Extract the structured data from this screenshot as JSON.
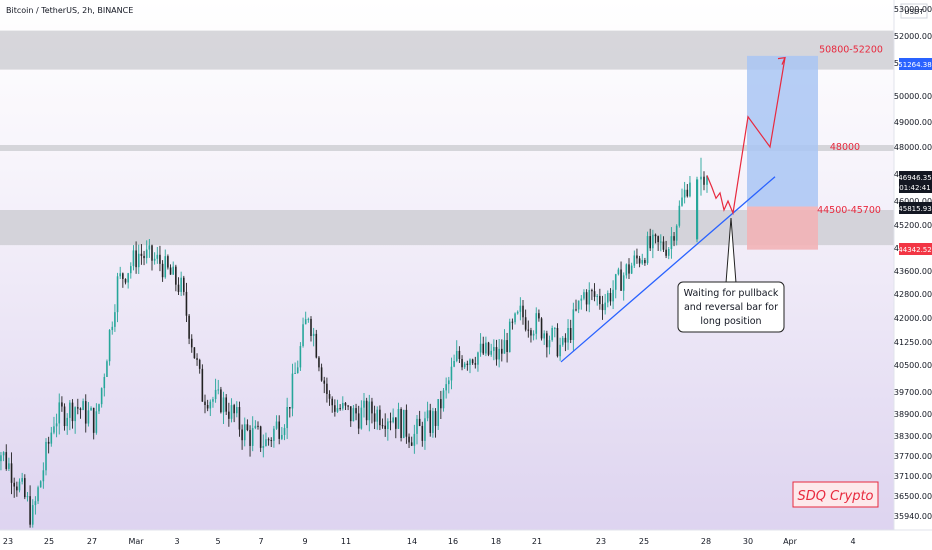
{
  "header": {
    "title": "Bitcoin / TetherUS, 2h, BINANCE"
  },
  "price_axis": {
    "currency": "USDT",
    "ticks": [
      "53000.00",
      "52000.00",
      "51000.00",
      "50000.00",
      "49000.00",
      "48000.00",
      "47000.00",
      "46000.00",
      "45200.00",
      "44400.00",
      "43600.00",
      "42800.00",
      "42000.00",
      "41250.00",
      "40500.00",
      "39700.00",
      "38900.00",
      "38300.00",
      "37700.00",
      "37100.00",
      "36500.00",
      "35940.00"
    ],
    "current_price": "46946.35",
    "countdown": "01:42:41",
    "tag_upper": "51264.38",
    "tag_mid": "45815.93",
    "tag_lower": "44342.52"
  },
  "time_axis": {
    "ticks": [
      "23",
      "25",
      "27",
      "Mar",
      "3",
      "5",
      "7",
      "9",
      "11",
      "14",
      "16",
      "18",
      "21",
      "23",
      "25",
      "28",
      "30",
      "Apr",
      "4"
    ]
  },
  "zones": [
    {
      "label": "50800-52200",
      "low": 50800,
      "high": 52200
    },
    {
      "label": "48000",
      "low": 47920,
      "high": 48080
    },
    {
      "label": "44500-45700",
      "low": 44500,
      "high": 45700
    }
  ],
  "annotation": {
    "line1": "Waiting for pullback",
    "line2": "and reversal bar for",
    "line3": "long position"
  },
  "watermark": "SDQ Crypto",
  "colors": {
    "up": "#26a69a",
    "down": "#222222",
    "zone": "#c9c9cf",
    "projection": "#e8293e",
    "trendline": "#2962ff",
    "target_box": "#a9c6f3",
    "stop_box": "#f2b3b6",
    "background_top": "#ffffff",
    "background_bottom": "#ddd3f0"
  },
  "chart_data": {
    "type": "candlestick",
    "title": "Bitcoin / TetherUS, 2h, BINANCE",
    "ylim": [
      35500,
      53300
    ],
    "y_scale": "linear",
    "x_ticks": [
      "23",
      "25",
      "27",
      "Mar",
      "3",
      "5",
      "7",
      "9",
      "11",
      "14",
      "16",
      "18",
      "21",
      "23",
      "25",
      "28",
      "30",
      "Apr",
      "4"
    ],
    "close_path": [
      [
        "Feb 22",
        38300
      ],
      [
        "Feb 23",
        37300
      ],
      [
        "Feb 24",
        35900
      ],
      [
        "Feb 25",
        38800
      ],
      [
        "Feb 26",
        39200
      ],
      [
        "Feb 27",
        38700
      ],
      [
        "Feb 28",
        43200
      ],
      [
        "Mar 1",
        44200
      ],
      [
        "Mar 2",
        43900
      ],
      [
        "Mar 3",
        43000
      ],
      [
        "Mar 4",
        39600
      ],
      [
        "Mar 5",
        39300
      ],
      [
        "Mar 6",
        38400
      ],
      [
        "Mar 7",
        38100
      ],
      [
        "Mar 8",
        39000
      ],
      [
        "Mar 9",
        42200
      ],
      [
        "Mar 10",
        39300
      ],
      [
        "Mar 11",
        38900
      ],
      [
        "Mar 12",
        39000
      ],
      [
        "Mar 13",
        38900
      ],
      [
        "Mar 14",
        38300
      ],
      [
        "Mar 15",
        38800
      ],
      [
        "Mar 16",
        40700
      ],
      [
        "Mar 17",
        40900
      ],
      [
        "Mar 18",
        40800
      ],
      [
        "Mar 19",
        42100
      ],
      [
        "Mar 20",
        41700
      ],
      [
        "Mar 21",
        41000
      ],
      [
        "Mar 22",
        42800
      ],
      [
        "Mar 23",
        42600
      ],
      [
        "Mar 24",
        43600
      ],
      [
        "Mar 25",
        44400
      ],
      [
        "Mar 26",
        44500
      ],
      [
        "Mar 27",
        46900
      ]
    ],
    "projection_path": [
      46946,
      46500,
      46100,
      46300,
      45700,
      46000,
      45600,
      49200,
      48000,
      51200
    ],
    "target_zone": [
      45815.93,
      51264.38
    ],
    "stop_zone": [
      44342.52,
      45815.93
    ]
  }
}
